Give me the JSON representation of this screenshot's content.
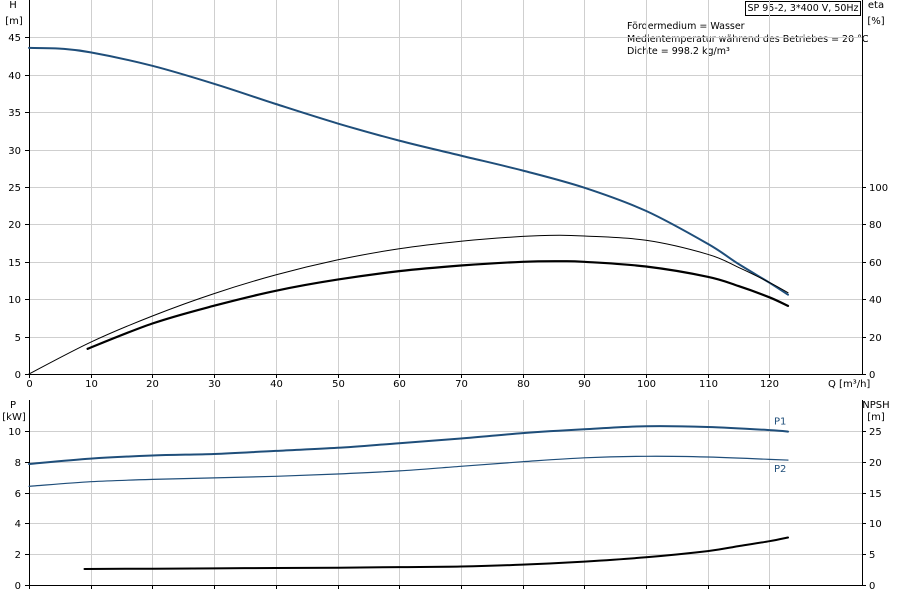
{
  "header_box": "SP 95-2, 3*400 V, 50Hz",
  "info": [
    "Fördermedium = Wasser",
    "Medientemperatur während des Betriebes = 20 °C",
    "Dichte = 998.2 kg/m³"
  ],
  "colors": {
    "pump_blue": "#1f4e7a",
    "black": "#000000",
    "grid": "#cfcfcf"
  },
  "chart_data": [
    {
      "type": "line",
      "name": "upper",
      "xlabel": "Q [m³/h]",
      "x_ticks": [
        0,
        10,
        20,
        30,
        40,
        50,
        60,
        70,
        80,
        90,
        100,
        110,
        120
      ],
      "xlim": [
        0,
        135
      ],
      "y_left": {
        "label_top": "H",
        "label_unit": "[m]",
        "lim": [
          0,
          50
        ],
        "ticks": [
          0,
          5,
          10,
          15,
          20,
          25,
          30,
          35,
          40,
          45
        ]
      },
      "y_right": {
        "label_top": "eta",
        "label_unit": "[%]",
        "lim": [
          0,
          200
        ],
        "ticks": [
          0,
          20,
          40,
          60,
          80,
          100
        ]
      },
      "series": [
        {
          "id": "H",
          "axis": "left",
          "color": "#1f4e7a",
          "width": 2,
          "points": [
            [
              0,
              43.6
            ],
            [
              5,
              43.5
            ],
            [
              10,
              43
            ],
            [
              20,
              41.2
            ],
            [
              30,
              38.8
            ],
            [
              40,
              36.1
            ],
            [
              50,
              33.5
            ],
            [
              60,
              31.2
            ],
            [
              70,
              29.2
            ],
            [
              80,
              27.2
            ],
            [
              90,
              24.9
            ],
            [
              100,
              21.8
            ],
            [
              110,
              17.4
            ],
            [
              115,
              14.7
            ],
            [
              120,
              12.2
            ],
            [
              123,
              10.6
            ]
          ]
        },
        {
          "id": "eta_pump",
          "axis": "right",
          "color": "#000000",
          "width": 1,
          "points": [
            [
              0,
              0
            ],
            [
              10,
              17
            ],
            [
              20,
              31
            ],
            [
              30,
              43
            ],
            [
              40,
              53
            ],
            [
              50,
              61
            ],
            [
              60,
              67
            ],
            [
              70,
              71
            ],
            [
              80,
              73.6
            ],
            [
              86,
              74.2
            ],
            [
              90,
              73.8
            ],
            [
              100,
              71.5
            ],
            [
              110,
              64
            ],
            [
              115,
              57
            ],
            [
              120,
              49
            ],
            [
              123,
              43.5
            ]
          ]
        },
        {
          "id": "eta_total",
          "axis": "right",
          "color": "#000000",
          "width": 2.2,
          "points": [
            [
              9.5,
              13.5
            ],
            [
              20,
              27
            ],
            [
              30,
              36.5
            ],
            [
              40,
              44.5
            ],
            [
              50,
              50.5
            ],
            [
              60,
              55
            ],
            [
              70,
              58
            ],
            [
              80,
              60
            ],
            [
              86,
              60.3
            ],
            [
              90,
              60
            ],
            [
              100,
              57.5
            ],
            [
              110,
              52
            ],
            [
              115,
              47
            ],
            [
              120,
              41
            ],
            [
              123,
              36.4
            ]
          ]
        }
      ]
    },
    {
      "type": "line",
      "name": "lower",
      "xlim": [
        0,
        135
      ],
      "y_left": {
        "label_top": "P",
        "label_unit": "[kW]",
        "lim": [
          0,
          12
        ],
        "ticks": [
          0,
          2,
          4,
          6,
          8,
          10
        ]
      },
      "y_right": {
        "label_top": "NPSH",
        "label_unit": "[m]",
        "lim": [
          0,
          30
        ],
        "ticks": [
          0,
          5,
          10,
          15,
          20,
          25
        ]
      },
      "series": [
        {
          "id": "P1",
          "axis": "left",
          "color": "#1f4e7a",
          "width": 2,
          "label": "P1",
          "points": [
            [
              0,
              7.85
            ],
            [
              10,
              8.2
            ],
            [
              20,
              8.4
            ],
            [
              30,
              8.5
            ],
            [
              40,
              8.7
            ],
            [
              50,
              8.9
            ],
            [
              60,
              9.2
            ],
            [
              70,
              9.5
            ],
            [
              80,
              9.85
            ],
            [
              90,
              10.1
            ],
            [
              100,
              10.3
            ],
            [
              110,
              10.25
            ],
            [
              120,
              10.05
            ],
            [
              123,
              9.95
            ]
          ]
        },
        {
          "id": "P2",
          "axis": "left",
          "color": "#1f4e7a",
          "width": 1.2,
          "label": "P2",
          "points": [
            [
              0,
              6.4
            ],
            [
              10,
              6.7
            ],
            [
              20,
              6.85
            ],
            [
              30,
              6.95
            ],
            [
              40,
              7.05
            ],
            [
              50,
              7.2
            ],
            [
              60,
              7.4
            ],
            [
              70,
              7.7
            ],
            [
              80,
              8.0
            ],
            [
              90,
              8.25
            ],
            [
              100,
              8.35
            ],
            [
              110,
              8.3
            ],
            [
              120,
              8.15
            ],
            [
              123,
              8.1
            ]
          ]
        },
        {
          "id": "NPSH",
          "axis": "right",
          "color": "#000000",
          "width": 2,
          "points": [
            [
              9,
              2.6
            ],
            [
              20,
              2.65
            ],
            [
              30,
              2.7
            ],
            [
              40,
              2.75
            ],
            [
              50,
              2.8
            ],
            [
              60,
              2.9
            ],
            [
              70,
              3.0
            ],
            [
              80,
              3.3
            ],
            [
              90,
              3.8
            ],
            [
              100,
              4.5
            ],
            [
              110,
              5.5
            ],
            [
              115,
              6.3
            ],
            [
              120,
              7.1
            ],
            [
              123,
              7.7
            ]
          ]
        }
      ]
    }
  ]
}
